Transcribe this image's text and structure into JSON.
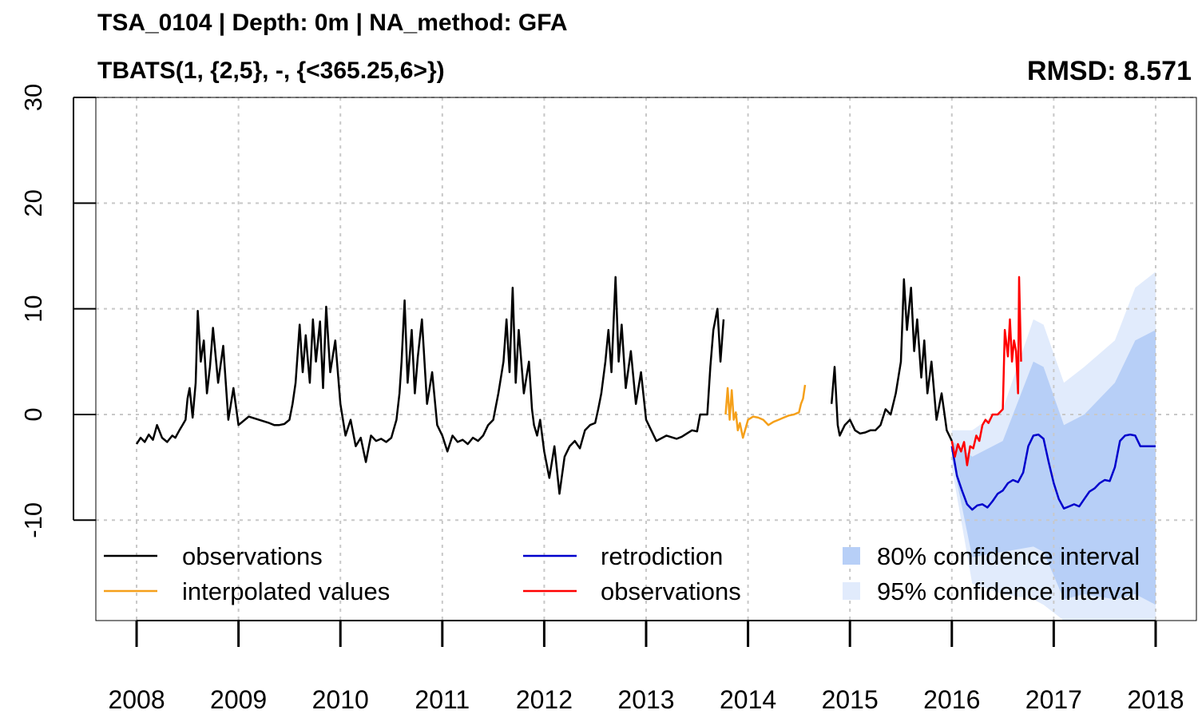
{
  "title": "TSA_0104 | Depth: 0m | NA_method: GFA",
  "subtitle": "TBATS(1, {2,5}, -, {<365.25,6>})",
  "rmsd_label": "RMSD: 8.571",
  "chart_data": {
    "type": "line",
    "xlim": [
      2007.6,
      2018.4
    ],
    "ylim": [
      -19.5,
      30
    ],
    "x_ticks": [
      2008,
      2009,
      2010,
      2011,
      2012,
      2013,
      2014,
      2015,
      2016,
      2017,
      2018
    ],
    "x_tick_labels": [
      "2008",
      "2009",
      "2010",
      "2011",
      "2012",
      "2013",
      "2014",
      "2015",
      "2016",
      "2017",
      "2018"
    ],
    "y_ticks": [
      -10,
      0,
      10,
      20,
      30
    ],
    "y_tick_labels": [
      "-10",
      "0",
      "10",
      "20",
      "30"
    ],
    "grid": true,
    "legend_position": "bottom",
    "colors": {
      "observations": "#000000",
      "interpolated": "#f5a01a",
      "retrodiction": "#0000cc",
      "test_observations": "#ff0000",
      "ci80": "#b7cff7",
      "ci95": "#e1ebfc",
      "grid": "#c8c8c8"
    },
    "legend": [
      {
        "label": "observations",
        "kind": "line",
        "color": "#000000"
      },
      {
        "label": "interpolated values",
        "kind": "line",
        "color": "#f5a01a"
      },
      {
        "label": "retrodiction",
        "kind": "line",
        "color": "#0000cc"
      },
      {
        "label": "observations",
        "kind": "line",
        "color": "#ff0000"
      },
      {
        "label": "80% confidence interval",
        "kind": "box",
        "color": "#b7cff7"
      },
      {
        "label": "95% confidence interval",
        "kind": "box",
        "color": "#e1ebfc"
      }
    ],
    "series": [
      {
        "role": "observations",
        "segments": [
          {
            "x": [
              2008.0,
              2008.04,
              2008.08,
              2008.12,
              2008.16,
              2008.2,
              2008.25,
              2008.3,
              2008.35,
              2008.38,
              2008.42,
              2008.45,
              2008.48,
              2008.5,
              2008.52,
              2008.55,
              2008.58,
              2008.6,
              2008.63,
              2008.66,
              2008.69,
              2008.72,
              2008.75,
              2008.8,
              2008.85,
              2008.9,
              2008.95,
              2009.0,
              2009.1,
              2009.2,
              2009.3,
              2009.35,
              2009.4,
              2009.45,
              2009.5,
              2009.53,
              2009.56,
              2009.6,
              2009.63,
              2009.66,
              2009.7,
              2009.73,
              2009.76,
              2009.8,
              2009.83,
              2009.86,
              2009.9,
              2009.95,
              2010.0,
              2010.05,
              2010.1,
              2010.15,
              2010.2,
              2010.25,
              2010.3,
              2010.35,
              2010.4,
              2010.45,
              2010.5,
              2010.52,
              2010.55,
              2010.58,
              2010.6,
              2010.63,
              2010.66,
              2010.7,
              2010.73,
              2010.76,
              2010.8,
              2010.85,
              2010.9,
              2010.95,
              2011.0,
              2011.05,
              2011.1,
              2011.15,
              2011.2,
              2011.25,
              2011.3,
              2011.35,
              2011.4,
              2011.45,
              2011.5,
              2011.55,
              2011.6,
              2011.63,
              2011.66,
              2011.69,
              2011.72,
              2011.75,
              2011.8,
              2011.85,
              2011.88,
              2011.9,
              2011.93,
              2011.96,
              2012.0,
              2012.05,
              2012.1,
              2012.15,
              2012.2,
              2012.25,
              2012.3,
              2012.35,
              2012.4,
              2012.45,
              2012.5,
              2012.53,
              2012.56,
              2012.6,
              2012.63,
              2012.66,
              2012.7,
              2012.73,
              2012.76,
              2012.8,
              2012.85,
              2012.9,
              2012.95,
              2013.0,
              2013.05,
              2013.1,
              2013.2,
              2013.3,
              2013.35,
              2013.4,
              2013.45,
              2013.5,
              2013.53,
              2013.56,
              2013.6,
              2013.63,
              2013.66,
              2013.7,
              2013.73,
              2013.76
            ],
            "y": [
              -2.8,
              -2.2,
              -2.6,
              -1.9,
              -2.4,
              -1.0,
              -2.2,
              -2.6,
              -2.0,
              -2.2,
              -1.5,
              -1.0,
              -0.5,
              1.5,
              2.5,
              -0.3,
              3.0,
              9.8,
              5.0,
              7.0,
              2.0,
              4.5,
              8.2,
              3.0,
              6.5,
              -0.5,
              2.5,
              -1.0,
              -0.2,
              -0.5,
              -0.8,
              -1.0,
              -1.0,
              -0.9,
              -0.5,
              1.0,
              3.0,
              8.5,
              4.0,
              7.5,
              3.0,
              9.0,
              5.0,
              8.8,
              2.5,
              10.2,
              4.0,
              7.0,
              1.0,
              -2.0,
              -0.5,
              -3.0,
              -2.2,
              -4.5,
              -2.0,
              -2.5,
              -2.3,
              -2.6,
              -2.2,
              -1.5,
              -0.5,
              2.0,
              5.0,
              10.8,
              3.0,
              8.0,
              2.0,
              5.5,
              9.0,
              1.0,
              4.0,
              -1.0,
              -2.0,
              -3.5,
              -2.0,
              -2.6,
              -2.4,
              -2.8,
              -2.2,
              -2.5,
              -2.0,
              -1.0,
              -0.5,
              2.0,
              5.0,
              9.0,
              4.0,
              12.0,
              3.0,
              8.0,
              2.0,
              5.0,
              0.5,
              -1.0,
              -2.0,
              -0.5,
              -3.5,
              -6.0,
              -3.0,
              -7.5,
              -4.0,
              -3.0,
              -2.5,
              -3.2,
              -1.5,
              -1.0,
              -0.8,
              0.5,
              2.0,
              5.0,
              8.0,
              4.0,
              13.0,
              5.0,
              8.5,
              2.5,
              6.0,
              1.0,
              4.0,
              -0.5,
              -1.5,
              -2.5,
              -2.0,
              -2.3,
              -2.1,
              -1.8,
              -1.5,
              -1.6,
              0.0,
              0.0,
              0.0,
              4.5,
              8.0,
              10.0,
              5.0,
              9.0
            ]
          },
          {
            "x": [
              2014.82,
              2014.85,
              2014.88,
              2014.9,
              2014.95,
              2015.0,
              2015.05,
              2015.1,
              2015.15,
              2015.2,
              2015.25,
              2015.3,
              2015.35,
              2015.4,
              2015.45,
              2015.5,
              2015.53,
              2015.56,
              2015.6,
              2015.63,
              2015.66,
              2015.7,
              2015.73,
              2015.76,
              2015.8,
              2015.85,
              2015.9,
              2015.95,
              2016.0
            ],
            "y": [
              1.0,
              4.5,
              -1.0,
              -2.0,
              -1.0,
              -0.5,
              -1.5,
              -1.8,
              -1.7,
              -1.5,
              -1.5,
              -1.0,
              0.5,
              0.0,
              2.0,
              5.0,
              12.8,
              8.0,
              12.0,
              6.0,
              9.0,
              3.5,
              7.0,
              2.0,
              5.0,
              -0.5,
              2.0,
              -1.5,
              -2.5
            ]
          }
        ]
      },
      {
        "role": "interpolated",
        "x": [
          2013.78,
          2013.8,
          2013.82,
          2013.84,
          2013.86,
          2013.88,
          2013.9,
          2013.92,
          2013.95,
          2014.0,
          2014.05,
          2014.1,
          2014.15,
          2014.2,
          2014.25,
          2014.3,
          2014.35,
          2014.4,
          2014.45,
          2014.5,
          2014.52,
          2014.54,
          2014.56
        ],
        "y": [
          0.0,
          2.5,
          -0.5,
          2.3,
          -0.5,
          0.2,
          -1.5,
          -0.8,
          -2.2,
          -0.5,
          -0.2,
          -0.3,
          -0.5,
          -1.0,
          -0.7,
          -0.5,
          -0.3,
          -0.1,
          0.0,
          0.2,
          1.0,
          1.5,
          2.8
        ]
      },
      {
        "role": "retrodiction",
        "x": [
          2016.0,
          2016.05,
          2016.1,
          2016.15,
          2016.2,
          2016.25,
          2016.3,
          2016.35,
          2016.4,
          2016.45,
          2016.5,
          2016.55,
          2016.6,
          2016.65,
          2016.7,
          2016.75,
          2016.8,
          2016.85,
          2016.9,
          2016.95,
          2017.0,
          2017.05,
          2017.1,
          2017.15,
          2017.2,
          2017.25,
          2017.3,
          2017.35,
          2017.4,
          2017.45,
          2017.5,
          2017.55,
          2017.6,
          2017.65,
          2017.7,
          2017.75,
          2017.8,
          2017.85,
          2017.9,
          2017.95,
          2018.0
        ],
        "y": [
          -3.0,
          -5.8,
          -7.2,
          -8.5,
          -9.0,
          -8.6,
          -8.5,
          -8.8,
          -8.2,
          -7.5,
          -7.2,
          -6.5,
          -6.2,
          -6.4,
          -5.5,
          -3.0,
          -2.0,
          -1.9,
          -2.3,
          -4.5,
          -6.5,
          -8.0,
          -8.9,
          -8.7,
          -8.5,
          -8.7,
          -8.0,
          -7.3,
          -7.0,
          -6.5,
          -6.2,
          -6.3,
          -5.0,
          -2.5,
          -2.0,
          -1.9,
          -2.0,
          -3.0,
          -3.0,
          -3.0,
          -3.0
        ]
      },
      {
        "role": "test_observations",
        "x": [
          2016.0,
          2016.03,
          2016.06,
          2016.09,
          2016.12,
          2016.15,
          2016.18,
          2016.21,
          2016.24,
          2016.27,
          2016.3,
          2016.33,
          2016.36,
          2016.4,
          2016.45,
          2016.5,
          2016.52,
          2016.55,
          2016.57,
          2016.59,
          2016.61,
          2016.63,
          2016.65,
          2016.66,
          2016.68
        ],
        "y": [
          -2.5,
          -4.0,
          -2.8,
          -3.5,
          -2.6,
          -4.8,
          -3.0,
          -3.2,
          -2.0,
          -2.5,
          -1.0,
          -0.5,
          -0.8,
          0.0,
          0.0,
          0.5,
          8.0,
          5.5,
          9.0,
          5.0,
          7.0,
          6.0,
          2.0,
          13.0,
          5.0
        ]
      }
    ],
    "ci80": {
      "x": [
        2016.0,
        2016.2,
        2016.5,
        2016.8,
        2016.9,
        2017.1,
        2017.3,
        2017.6,
        2017.8,
        2018.0
      ],
      "lower": [
        -4.0,
        -13.5,
        -13.0,
        -12.5,
        -13.0,
        -17.5,
        -17.0,
        -17.5,
        -17.0,
        -18.0
      ],
      "upper": [
        -2.5,
        -4.0,
        -2.5,
        5.0,
        4.5,
        -1.0,
        0.0,
        3.0,
        7.0,
        8.0
      ]
    },
    "ci95": {
      "x": [
        2016.0,
        2016.2,
        2016.5,
        2016.8,
        2016.9,
        2017.1,
        2017.3,
        2017.6,
        2017.8,
        2018.0
      ],
      "lower": [
        -5.0,
        -16.0,
        -17.0,
        -17.5,
        -18.0,
        -21.0,
        -21.0,
        -21.0,
        -21.0,
        -21.0
      ],
      "upper": [
        -1.5,
        -1.5,
        0.5,
        9.0,
        8.5,
        3.0,
        4.5,
        7.0,
        12.0,
        13.5
      ]
    }
  }
}
